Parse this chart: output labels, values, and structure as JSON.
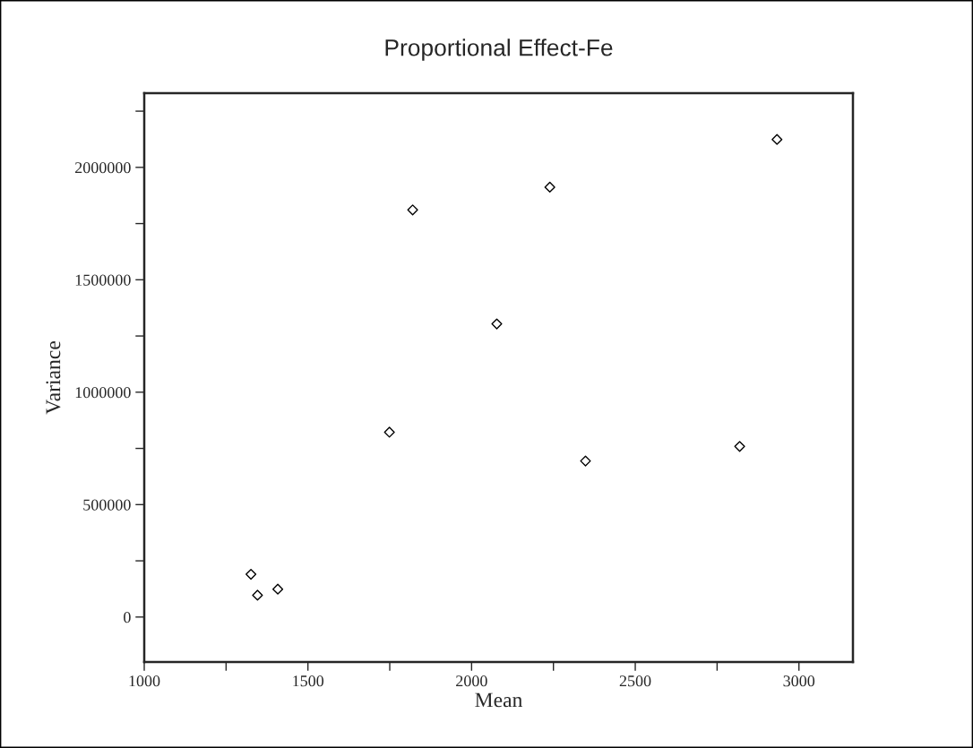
{
  "chart_data": {
    "type": "scatter",
    "title": "Proportional Effect-Fe",
    "xlabel": "Mean",
    "ylabel": "Variance",
    "x": [
      1326,
      1346,
      1408,
      1749,
      1820,
      2077,
      2239,
      2348,
      2819,
      2933
    ],
    "series": [
      {
        "color": "#000000",
        "values": [
          190000,
          97000,
          124000,
          822000,
          1811000,
          1304000,
          1912000,
          694000,
          759000,
          2124000
        ]
      }
    ],
    "marker": "diamond",
    "grid": false,
    "xlim": [
      1000,
      3165
    ],
    "ylim": [
      -200000,
      2330000
    ],
    "xticks": [
      1000,
      {
        "value": 1250,
        "label": null
      },
      1500,
      {
        "value": 1750,
        "label": null
      },
      2000,
      {
        "value": 2250,
        "label": null
      },
      2500,
      {
        "value": 2750,
        "label": null
      },
      3000
    ],
    "yticks": [
      0,
      {
        "value": 250000,
        "label": null
      },
      500000,
      {
        "value": 750000,
        "label": null
      },
      1000000,
      {
        "value": 1250000,
        "label": null
      },
      1500000,
      {
        "value": 1750000,
        "label": null
      },
      2000000,
      {
        "value": 2250000,
        "label": null
      }
    ]
  }
}
